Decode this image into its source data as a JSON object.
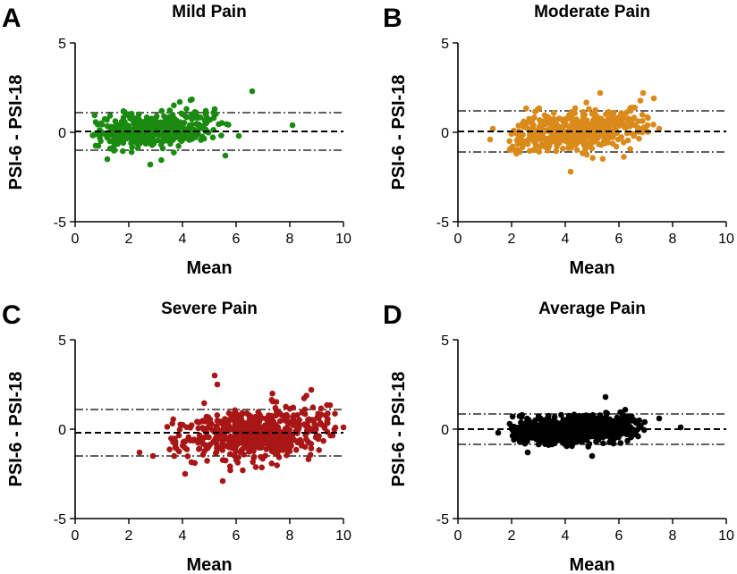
{
  "chart_data": [
    {
      "type": "scatter",
      "panel": "A",
      "title": "Mild Pain",
      "xlabel": "Mean",
      "ylabel": "PSI-6 - PSI-18",
      "xlim": [
        0,
        10
      ],
      "ylim": [
        -5,
        5
      ],
      "xticks": [
        "0",
        "2",
        "4",
        "6",
        "8",
        "10"
      ],
      "yticks": [
        "-5",
        "0",
        "5"
      ],
      "color": "#1a8a10",
      "bias": 0.05,
      "loa_upper": 1.1,
      "loa_lower": -1.0,
      "cloud": {
        "n": 420,
        "seed": 11,
        "x_range": [
          0.5,
          5.8
        ],
        "x_mode": 2.4,
        "y_sd": 0.45,
        "y_trend": 0.12,
        "y_clip": 1.9
      },
      "points": [
        {
          "x": 6.6,
          "y": 2.3
        },
        {
          "x": 8.1,
          "y": 0.4
        },
        {
          "x": 6.1,
          "y": -0.2
        },
        {
          "x": 5.6,
          "y": -1.3
        },
        {
          "x": 4.3,
          "y": 1.8
        },
        {
          "x": 2.8,
          "y": -1.8
        },
        {
          "x": 1.2,
          "y": -1.5
        },
        {
          "x": 5.2,
          "y": 1.3
        },
        {
          "x": 3.9,
          "y": 1.7
        }
      ]
    },
    {
      "type": "scatter",
      "panel": "B",
      "title": "Moderate Pain",
      "xlabel": "Mean",
      "ylabel": "PSI-6 - PSI-18",
      "xlim": [
        0,
        10
      ],
      "ylim": [
        -5,
        5
      ],
      "xticks": [
        "0",
        "2",
        "4",
        "6",
        "8",
        "10"
      ],
      "yticks": [
        "-5",
        "0",
        "5"
      ],
      "color": "#d98a1a",
      "bias": 0.05,
      "loa_upper": 1.2,
      "loa_lower": -1.1,
      "cloud": {
        "n": 480,
        "seed": 23,
        "x_range": [
          1.6,
          7.4
        ],
        "x_mode": 4.6,
        "y_sd": 0.55,
        "y_trend": 0.1,
        "y_clip": 2.0
      },
      "points": [
        {
          "x": 1.2,
          "y": -0.4
        },
        {
          "x": 1.3,
          "y": 0.2
        },
        {
          "x": 7.5,
          "y": 0.2
        },
        {
          "x": 6.9,
          "y": 2.2
        },
        {
          "x": 5.3,
          "y": 2.2
        },
        {
          "x": 4.2,
          "y": -2.2
        },
        {
          "x": 7.3,
          "y": 1.9
        },
        {
          "x": 2.3,
          "y": -1.1
        }
      ]
    },
    {
      "type": "scatter",
      "panel": "C",
      "title": "Severe Pain",
      "xlabel": "Mean",
      "ylabel": "PSI-6 - PSI-18",
      "xlim": [
        0,
        10
      ],
      "ylim": [
        -5,
        5
      ],
      "xticks": [
        "0",
        "2",
        "4",
        "6",
        "8",
        "10"
      ],
      "yticks": [
        "-5",
        "0",
        "5"
      ],
      "color": "#a81616",
      "bias": -0.2,
      "loa_upper": 1.1,
      "loa_lower": -1.5,
      "cloud": {
        "n": 560,
        "seed": 37,
        "x_range": [
          3.2,
          9.8
        ],
        "x_mode": 7.0,
        "y_sd": 0.7,
        "y_trend": 0.14,
        "y_clip": 2.3
      },
      "points": [
        {
          "x": 5.2,
          "y": 3.0
        },
        {
          "x": 5.3,
          "y": 2.5
        },
        {
          "x": 2.4,
          "y": -1.3
        },
        {
          "x": 5.5,
          "y": -2.9
        },
        {
          "x": 10.0,
          "y": 0.1
        },
        {
          "x": 8.8,
          "y": 2.2
        },
        {
          "x": 2.9,
          "y": -1.5
        },
        {
          "x": 4.1,
          "y": -2.5
        }
      ]
    },
    {
      "type": "scatter",
      "panel": "D",
      "title": "Average Pain",
      "xlabel": "Mean",
      "ylabel": "PSI-6 - PSI-18",
      "xlim": [
        0,
        10
      ],
      "ylim": [
        -5,
        5
      ],
      "xticks": [
        "0",
        "2",
        "4",
        "6",
        "8",
        "10"
      ],
      "yticks": [
        "-5",
        "0",
        "5"
      ],
      "color": "#000000",
      "bias": 0.0,
      "loa_upper": 0.85,
      "loa_lower": -0.85,
      "cloud": {
        "n": 900,
        "seed": 53,
        "x_range": [
          1.8,
          7.0
        ],
        "x_mode": 4.4,
        "y_sd": 0.35,
        "y_trend": 0.06,
        "y_clip": 1.5
      },
      "points": [
        {
          "x": 8.3,
          "y": 0.1
        },
        {
          "x": 5.5,
          "y": 1.8
        },
        {
          "x": 1.5,
          "y": -0.2
        },
        {
          "x": 7.5,
          "y": 0.6
        },
        {
          "x": 2.6,
          "y": -1.3
        },
        {
          "x": 5.0,
          "y": -1.5
        }
      ]
    }
  ]
}
